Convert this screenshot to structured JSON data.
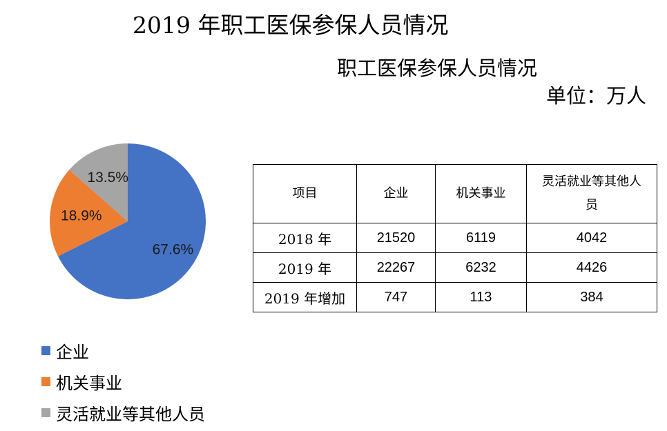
{
  "title": "2019 年职工医保参保人员情况",
  "subtitle": "职工医保参保人员情况",
  "unit": "单位：万人",
  "chart_data": {
    "type": "pie",
    "categories": [
      "企业",
      "机关事业",
      "灵活就业等其他人员"
    ],
    "values": [
      67.6,
      18.9,
      13.5
    ],
    "labels": [
      "67.6%",
      "18.9%",
      "13.5%"
    ],
    "colors": [
      "#4472C4",
      "#ED7D31",
      "#A5A5A5"
    ],
    "legend_position": "bottom-left"
  },
  "table": {
    "headers": [
      "项目",
      "企业",
      "机关事业",
      "灵活就业等其他人员"
    ],
    "rows": [
      [
        "2018 年",
        "21520",
        "6119",
        "4042"
      ],
      [
        "2019 年",
        "22267",
        "6232",
        "4426"
      ],
      [
        "2019 年增加",
        "747",
        "113",
        "384"
      ]
    ]
  }
}
